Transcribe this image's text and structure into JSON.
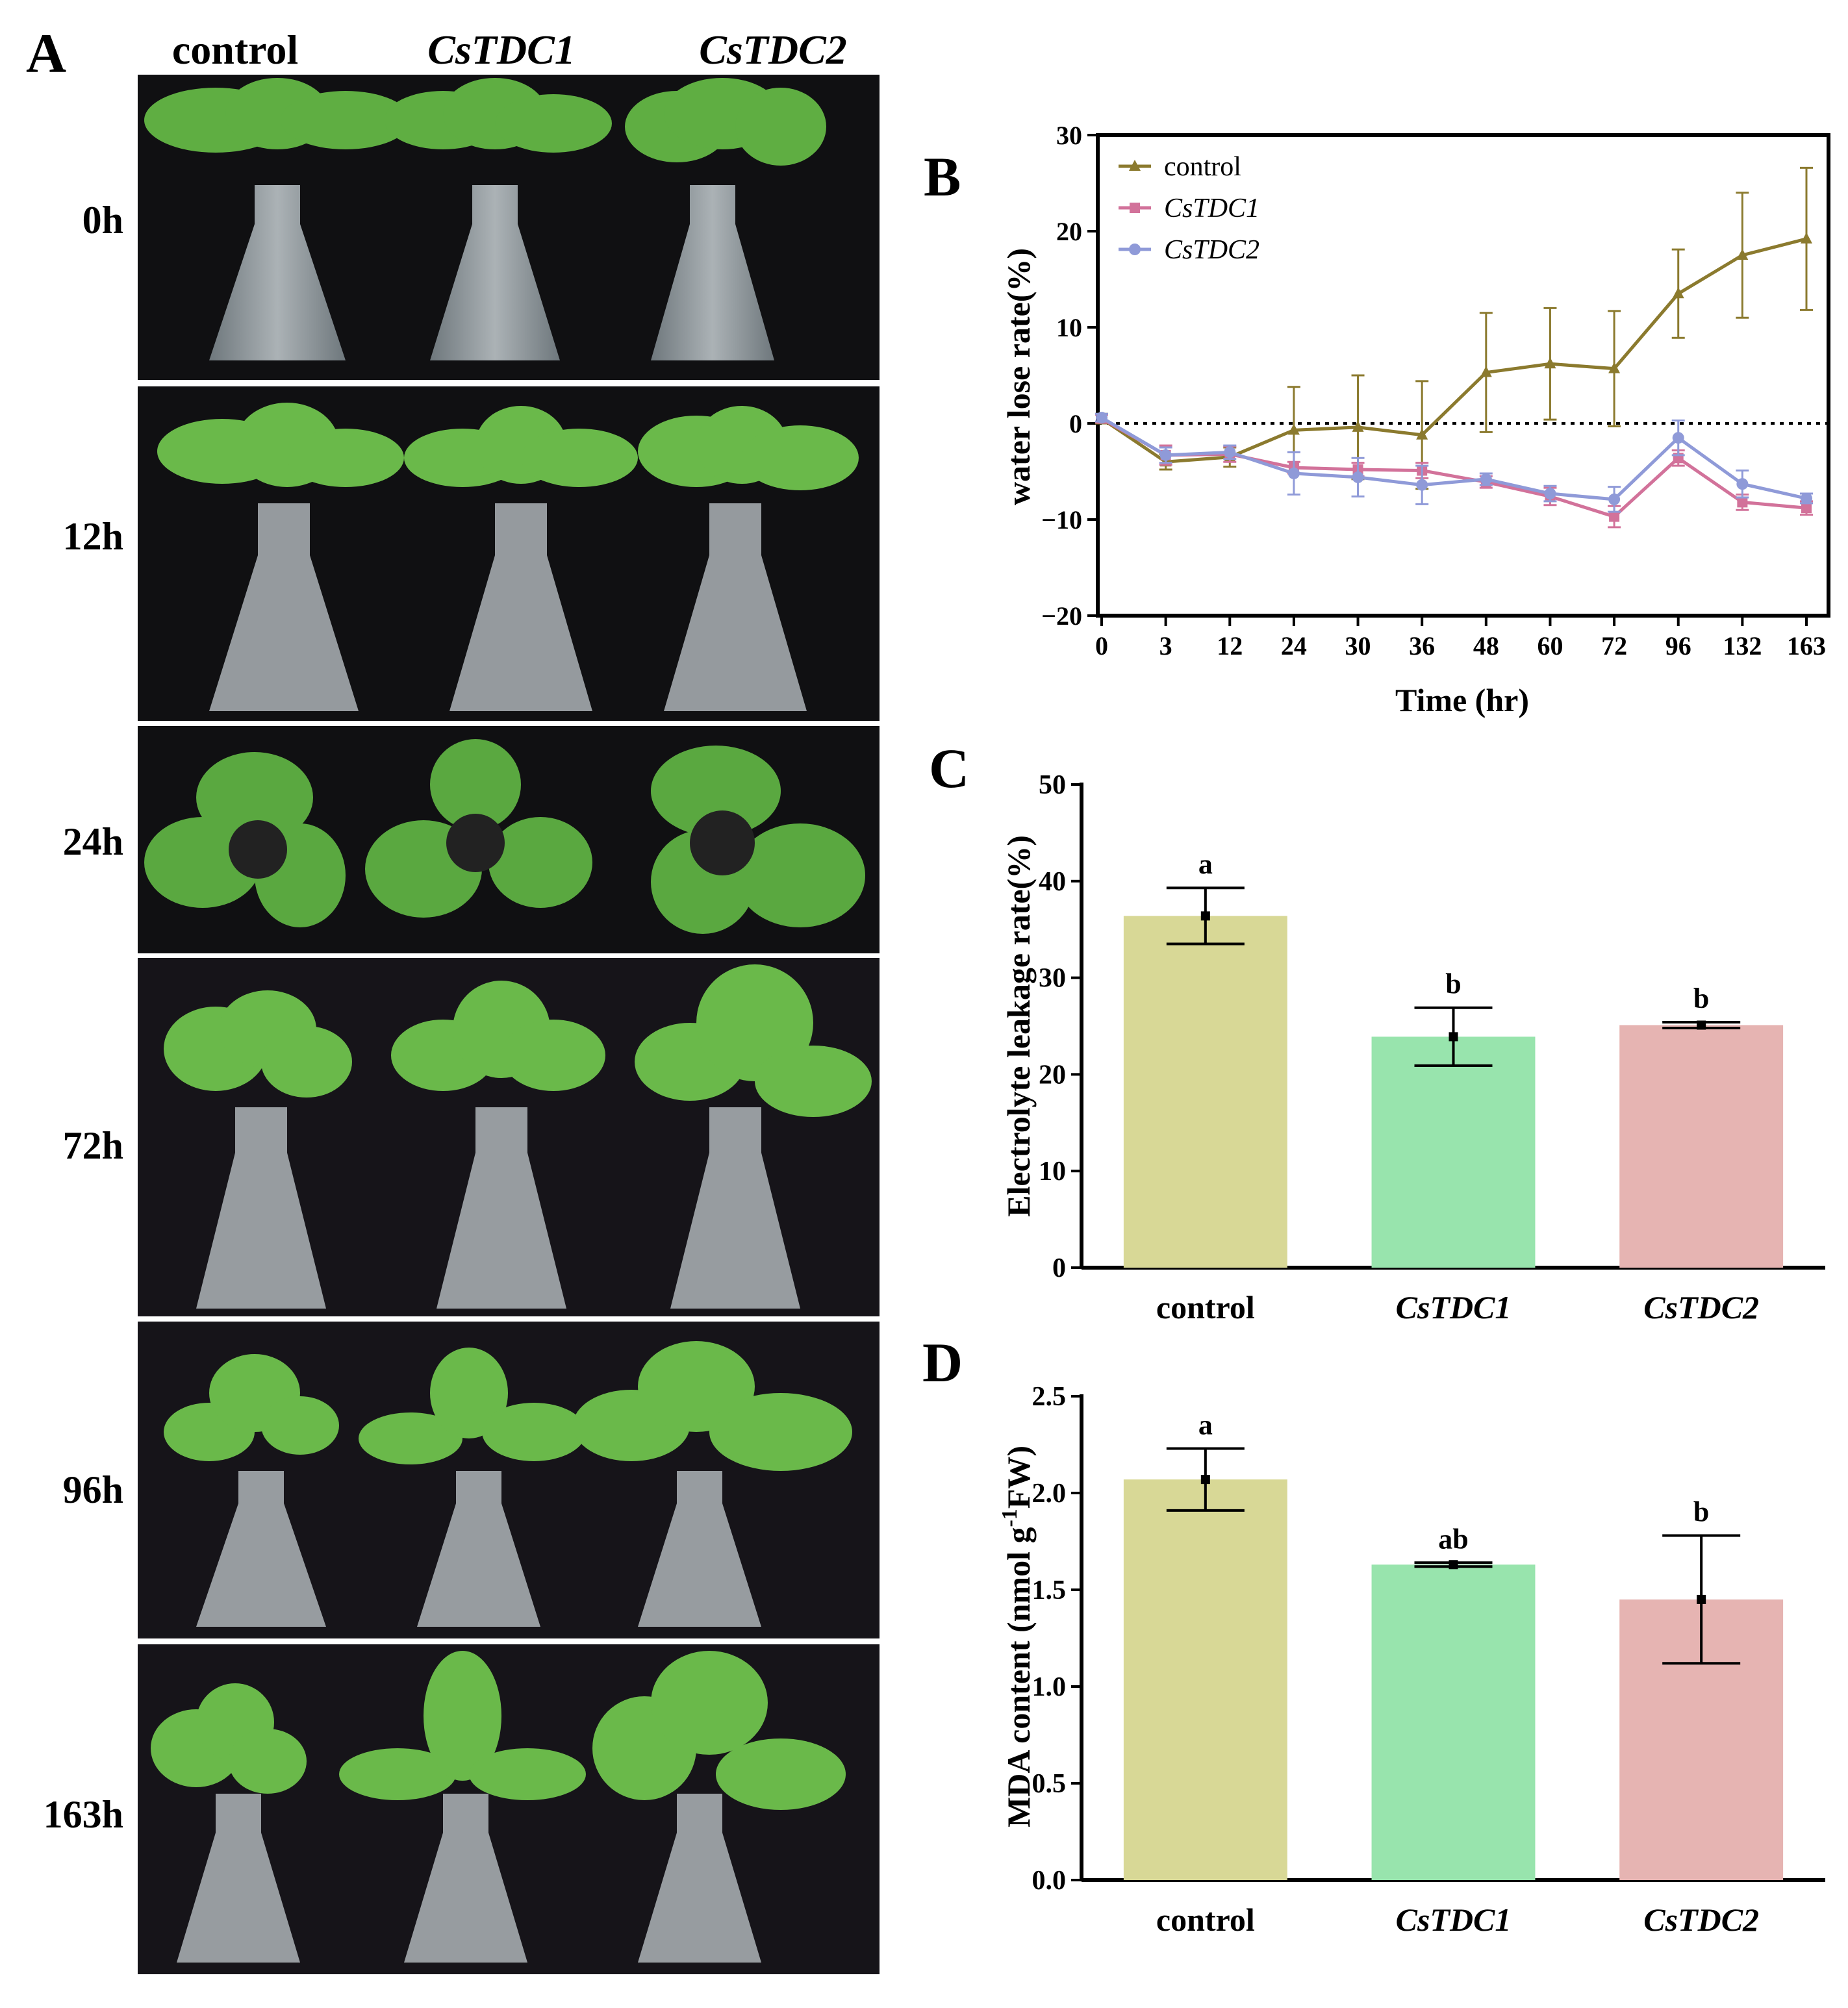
{
  "panels": {
    "a": "A",
    "b": "B",
    "c": "C",
    "d": "D"
  },
  "photo_grid": {
    "columns": [
      {
        "label": "control",
        "italic": false
      },
      {
        "label": "CsTDC1",
        "italic": true
      },
      {
        "label": "CsTDC2",
        "italic": true
      }
    ],
    "rows": [
      "0h",
      "12h",
      "24h",
      "72h",
      "96h",
      "163h"
    ]
  },
  "chart_data": [
    {
      "panel": "B",
      "type": "line",
      "xlabel": "Time (hr)",
      "ylabel": "water lose rate(%)",
      "categories": [
        "0",
        "3",
        "12",
        "24",
        "30",
        "36",
        "48",
        "60",
        "72",
        "96",
        "132",
        "163"
      ],
      "ylim": [
        -20,
        30
      ],
      "yticks": [
        -20,
        -10,
        0,
        10,
        20,
        30
      ],
      "reference_line": 0,
      "legend_position": "top-left",
      "series": [
        {
          "name": "control",
          "italic": false,
          "color": "#8B7A2E",
          "marker": "triangle",
          "values": [
            0.5,
            -4.0,
            -3.5,
            -0.7,
            -0.4,
            -1.2,
            5.3,
            6.2,
            5.7,
            13.5,
            17.5,
            19.2
          ],
          "errors": [
            0.5,
            0.8,
            1.0,
            4.5,
            5.4,
            5.6,
            6.2,
            5.8,
            6.0,
            4.6,
            6.5,
            7.4
          ]
        },
        {
          "name": "CsTDC1",
          "italic": true,
          "color": "#D2729A",
          "marker": "square",
          "values": [
            0.5,
            -3.3,
            -3.2,
            -4.6,
            -4.8,
            -4.9,
            -6.1,
            -7.6,
            -9.7,
            -3.6,
            -8.2,
            -8.8
          ],
          "errors": [
            0.4,
            1.0,
            0.8,
            0.6,
            0.7,
            0.8,
            0.6,
            0.9,
            1.1,
            0.8,
            0.8,
            0.7
          ]
        },
        {
          "name": "CsTDC2",
          "italic": true,
          "color": "#8F9AD8",
          "marker": "circle",
          "values": [
            0.6,
            -3.3,
            -3.0,
            -5.2,
            -5.6,
            -6.4,
            -5.8,
            -7.3,
            -7.9,
            -1.5,
            -6.3,
            -7.8
          ],
          "errors": [
            0.4,
            0.8,
            0.7,
            2.2,
            2.0,
            2.0,
            0.6,
            0.8,
            1.3,
            1.8,
            1.4,
            0.5
          ]
        }
      ]
    },
    {
      "panel": "C",
      "type": "bar",
      "ylabel": "Electrolyte leakage rate(%)",
      "categories": [
        "control",
        "CsTDC1",
        "CsTDC2"
      ],
      "category_italic": [
        false,
        true,
        true
      ],
      "values": [
        36.4,
        23.9,
        25.1
      ],
      "errors": [
        2.9,
        3.0,
        0.3
      ],
      "letters": [
        "a",
        "b",
        "b"
      ],
      "colors": [
        "#D8D896",
        "#98E4AD",
        "#E6B4B2"
      ],
      "ylim": [
        0,
        50
      ],
      "yticks": [
        0,
        10,
        20,
        30,
        40,
        50
      ]
    },
    {
      "panel": "D",
      "type": "bar",
      "ylabel_prefix": "MDA content (nmol g",
      "ylabel_sup": "-1",
      "ylabel_suffix": "FW)",
      "categories": [
        "control",
        "CsTDC1",
        "CsTDC2"
      ],
      "category_italic": [
        false,
        true,
        true
      ],
      "values": [
        2.07,
        1.63,
        1.45
      ],
      "errors": [
        0.16,
        0.01,
        0.33
      ],
      "letters": [
        "a",
        "ab",
        "b"
      ],
      "colors": [
        "#D8D896",
        "#98E4AD",
        "#E6B4B2"
      ],
      "ylim": [
        0,
        2.5
      ],
      "yticks": [
        "0.0",
        "0.5",
        "1.0",
        "1.5",
        "2.0",
        "2.5"
      ]
    }
  ]
}
